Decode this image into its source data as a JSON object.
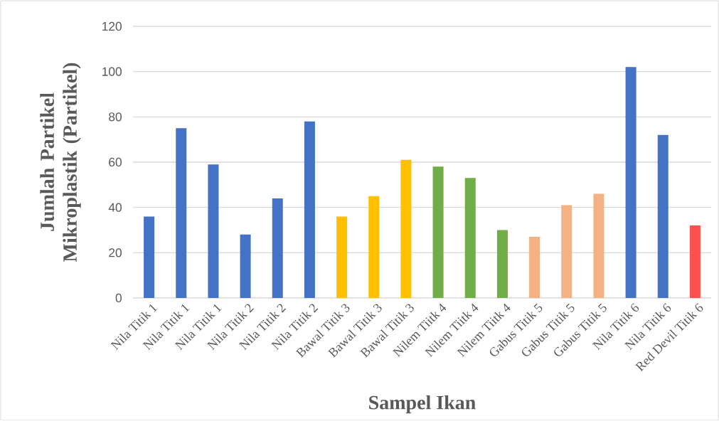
{
  "chart_data": {
    "type": "bar",
    "xlabel": "Sampel Ikan",
    "ylabel": "Jumlah Partikel Mikroplastik (Partikel)",
    "categories": [
      "Nila Titik 1",
      "Nila Titik 1",
      "Nila Titik 1",
      "Nila Titik 2",
      "Nila Titik 2",
      "Nila Titik 2",
      "Bawal Titik 3",
      "Bawal Titik 3",
      "Bawal Titik 3",
      "Nilem Tiitk 4",
      "Nilem Tiitk 4",
      "Nilem Tiitk 4",
      "Gabus Titik 5",
      "Gabus Titik 5",
      "Gabus Titik 5",
      "Nila Titik 6",
      "Nila Titik 6",
      "Red Devil Titik 6"
    ],
    "values": [
      36,
      75,
      59,
      28,
      44,
      78,
      36,
      45,
      61,
      58,
      53,
      30,
      27,
      41,
      46,
      102,
      72,
      32
    ],
    "colors": [
      "#4472c4",
      "#4472c4",
      "#4472c4",
      "#4472c4",
      "#4472c4",
      "#4472c4",
      "#ffc000",
      "#ffc000",
      "#ffc000",
      "#70ad47",
      "#70ad47",
      "#70ad47",
      "#f4b183",
      "#f4b183",
      "#f4b183",
      "#4472c4",
      "#4472c4",
      "#ff5050"
    ],
    "ylim": [
      0,
      120
    ],
    "yticks": [
      0,
      20,
      40,
      60,
      80,
      100,
      120
    ],
    "grid": "y"
  }
}
